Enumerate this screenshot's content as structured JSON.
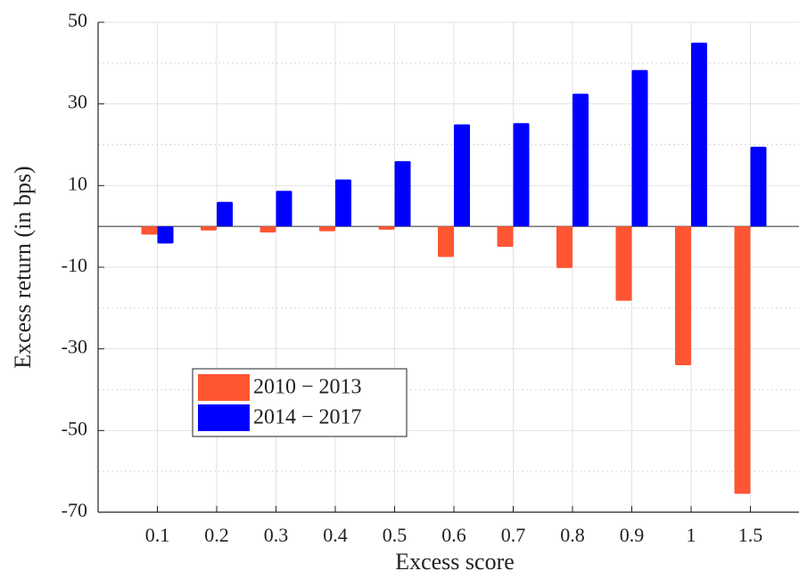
{
  "chart_data": {
    "type": "bar",
    "xlabel": "Excess score",
    "ylabel": "Excess return (in bps)",
    "categories": [
      "0.1",
      "0.2",
      "0.3",
      "0.4",
      "0.5",
      "0.6",
      "0.7",
      "0.8",
      "0.9",
      "1",
      "1.5"
    ],
    "series": [
      {
        "name": "2010 − 2013",
        "color": "#ff5533",
        "values": [
          -2,
          -1,
          -1.5,
          -1.2,
          -0.8,
          -7.5,
          -5,
          -10.2,
          -18.2,
          -34,
          -65.5
        ]
      },
      {
        "name": "2014 − 2017",
        "color": "#0000ff",
        "values": [
          -4.2,
          6,
          8.7,
          11.5,
          16,
          25,
          25.3,
          32.5,
          38.3,
          45,
          19.5
        ]
      }
    ],
    "ylim": [
      -70,
      50
    ],
    "yticks": [
      -70,
      -50,
      -30,
      -10,
      10,
      30,
      50
    ],
    "yminorticks": [
      -60,
      -40,
      -20,
      20,
      40
    ],
    "grid": true,
    "legend": "lower-left"
  }
}
